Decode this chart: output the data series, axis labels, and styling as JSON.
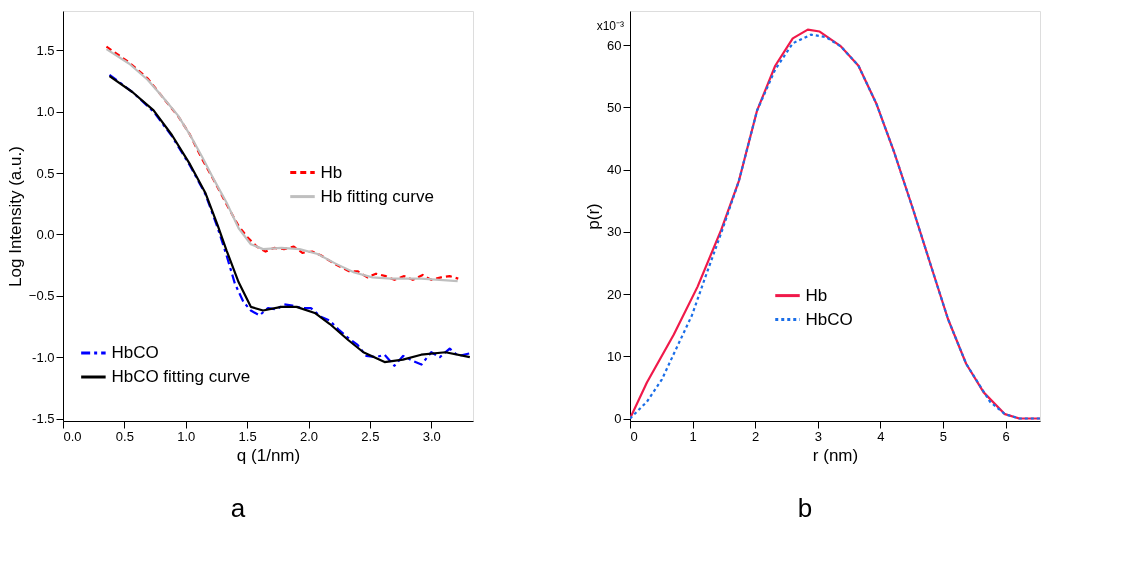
{
  "chart_data": [
    {
      "type": "line",
      "xlabel": "q (1/nm)",
      "ylabel": "Log Intensity (a.u.)",
      "annotations": [
        "a"
      ],
      "legend": "center right",
      "xlim": [
        0,
        3.34
      ],
      "ylim": [
        -1.52,
        1.82
      ],
      "xticks": [
        {
          "value": 0,
          "label": "0.0"
        },
        0.5,
        {
          "value": 1,
          "label": "1.0"
        },
        1.5,
        {
          "value": 2,
          "label": "2.0"
        },
        2.5,
        {
          "value": 3,
          "label": "3.0"
        }
      ],
      "yticks": [
        {
          "value": -1.5,
          "label": "-1.5"
        },
        {
          "value": -1,
          "label": "-1.0"
        },
        -0.5,
        {
          "value": 0,
          "label": "0.0"
        },
        0.5,
        {
          "value": 1,
          "label": "1.0"
        },
        1.5
      ],
      "series": [
        {
          "name": "Hb",
          "color": "#ff0000",
          "line_style": "dashed",
          "x": [
            0.354,
            0.54,
            0.69,
            0.81,
            0.94,
            1.03,
            1.13,
            1.23,
            1.33,
            1.43,
            1.5,
            1.58,
            1.65,
            1.72,
            1.8,
            1.88,
            1.95,
            2.03,
            2.1,
            2.18,
            2.25,
            2.33,
            2.4,
            2.48,
            2.55,
            2.63,
            2.7,
            2.78,
            2.85,
            2.93,
            3.0,
            3.08,
            3.15,
            3.22
          ],
          "values": [
            1.53,
            1.4,
            1.27,
            1.12,
            0.96,
            0.82,
            0.62,
            0.44,
            0.25,
            0.07,
            -0.02,
            -0.1,
            -0.14,
            -0.11,
            -0.12,
            -0.1,
            -0.15,
            -0.14,
            -0.17,
            -0.22,
            -0.26,
            -0.3,
            -0.3,
            -0.35,
            -0.32,
            -0.34,
            -0.37,
            -0.34,
            -0.37,
            -0.33,
            -0.37,
            -0.35,
            -0.34,
            -0.36
          ]
        },
        {
          "name": "Hb fitting curve",
          "color": "#bfbfbf",
          "line_style": "solid",
          "x": [
            0.354,
            0.54,
            0.689,
            0.812,
            0.936,
            1.035,
            1.134,
            1.233,
            1.332,
            1.431,
            1.53,
            1.63,
            1.778,
            1.927,
            2.075,
            2.224,
            2.373,
            2.521,
            2.67,
            2.918,
            3.215
          ],
          "values": [
            1.51,
            1.39,
            1.26,
            1.12,
            0.97,
            0.81,
            0.63,
            0.44,
            0.26,
            0.05,
            -0.08,
            -0.12,
            -0.11,
            -0.12,
            -0.16,
            -0.24,
            -0.31,
            -0.35,
            -0.36,
            -0.36,
            -0.38
          ]
        },
        {
          "name": "HbCO",
          "color": "#0000ff",
          "line_style": "dashdot",
          "x": [
            0.379,
            0.565,
            0.738,
            0.887,
            1.035,
            1.159,
            1.258,
            1.332,
            1.4,
            1.47,
            1.53,
            1.6,
            1.67,
            1.74,
            1.8,
            1.87,
            1.95,
            2.02,
            2.1,
            2.17,
            2.25,
            2.32,
            2.4,
            2.47,
            2.55,
            2.62,
            2.7,
            2.77,
            2.85,
            2.92,
            3.0,
            3.07,
            3.15,
            3.22,
            3.31
          ],
          "values": [
            1.3,
            1.16,
            1.0,
            0.8,
            0.56,
            0.33,
            0.06,
            -0.17,
            -0.4,
            -0.55,
            -0.62,
            -0.66,
            -0.6,
            -0.61,
            -0.57,
            -0.58,
            -0.6,
            -0.6,
            -0.67,
            -0.7,
            -0.78,
            -0.84,
            -0.9,
            -0.99,
            -1.0,
            -0.98,
            -1.07,
            -0.99,
            -1.03,
            -1.06,
            -0.96,
            -1.0,
            -0.93,
            -0.99,
            -0.97
          ]
        },
        {
          "name": "HbCO fitting curve",
          "color": "#000000",
          "line_style": "solid",
          "x": [
            0.379,
            0.565,
            0.738,
            0.887,
            1.035,
            1.159,
            1.258,
            1.332,
            1.431,
            1.53,
            1.63,
            1.778,
            1.902,
            2.051,
            2.174,
            2.323,
            2.447,
            2.62,
            2.769,
            2.918,
            3.116,
            3.314
          ],
          "values": [
            1.29,
            1.16,
            1.01,
            0.81,
            0.57,
            0.34,
            0.08,
            -0.13,
            -0.39,
            -0.59,
            -0.62,
            -0.59,
            -0.59,
            -0.64,
            -0.73,
            -0.86,
            -0.96,
            -1.04,
            -1.02,
            -0.98,
            -0.96,
            -1.0
          ]
        }
      ]
    },
    {
      "type": "line",
      "xlabel": "r (nm)",
      "ylabel": "p(r)",
      "annotations": [
        "x10⁻³",
        "b"
      ],
      "legend": "center",
      "xlim": [
        0,
        6.55
      ],
      "ylim": [
        -0.4,
        65.5
      ],
      "xticks": [
        0,
        1,
        2,
        3,
        4,
        5,
        6
      ],
      "yticks": [
        0,
        10,
        20,
        30,
        40,
        50,
        60
      ],
      "series": [
        {
          "name": "Hb",
          "color": "#f0194a",
          "line_style": "solid",
          "x": [
            0,
            0.27,
            0.7,
            1.08,
            1.46,
            1.74,
            2.03,
            2.32,
            2.6,
            2.84,
            3.03,
            3.37,
            3.65,
            3.94,
            4.22,
            4.51,
            4.8,
            5.08,
            5.37,
            5.65,
            5.99,
            6.22,
            6.55
          ],
          "values": [
            0,
            5.8,
            13.5,
            21.2,
            30.4,
            38.2,
            49.5,
            56.7,
            61.1,
            62.5,
            62.2,
            59.8,
            56.7,
            50.5,
            42.8,
            34.0,
            24.8,
            16.0,
            8.8,
            4.2,
            0.7,
            0,
            0
          ]
        },
        {
          "name": "HbCO",
          "color": "#1a6ee8",
          "line_style": "dotted",
          "x": [
            0,
            0.27,
            0.51,
            0.7,
            0.99,
            1.22,
            1.46,
            1.74,
            2.03,
            2.32,
            2.6,
            2.89,
            3.13,
            3.37,
            3.65,
            3.94,
            4.22,
            4.51,
            4.8,
            5.08,
            5.37,
            5.75,
            5.99,
            6.22,
            6.55
          ],
          "values": [
            0,
            2.7,
            6.3,
            10.4,
            16.6,
            23.2,
            29.9,
            38.2,
            49.5,
            56.1,
            60.3,
            61.7,
            61.3,
            59.8,
            56.7,
            50.5,
            42.8,
            34.0,
            24.8,
            16.0,
            8.8,
            2.7,
            0.7,
            0,
            0
          ]
        }
      ]
    }
  ]
}
